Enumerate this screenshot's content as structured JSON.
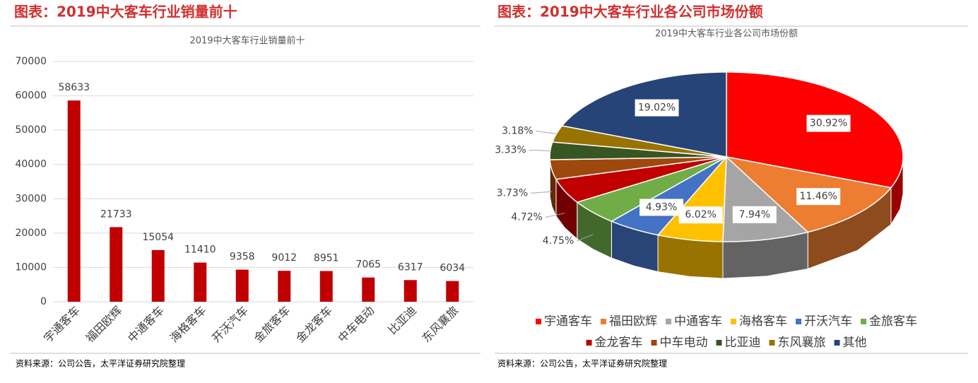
{
  "chart_data": [
    {
      "type": "bar",
      "heading": "图表：2019中大客车行业销量前十",
      "title": "2019中大客车行业销量前十",
      "source": "资料来源：公司公告，太平洋证券研究院整理",
      "categories": [
        "宇通客车",
        "福田欧辉",
        "中通客车",
        "海格客车",
        "开沃汽车",
        "金旅客车",
        "金龙客车",
        "中车电动",
        "比亚迪",
        "东风襄旅"
      ],
      "values": [
        58633,
        21733,
        15054,
        11410,
        9358,
        9012,
        8951,
        7065,
        6317,
        6034
      ],
      "color": "#c00000",
      "ylim": [
        0,
        70000
      ],
      "yticks": [
        0,
        10000,
        20000,
        30000,
        40000,
        50000,
        60000,
        70000
      ],
      "grid": true
    },
    {
      "type": "pie",
      "heading": "图表：2019中大客车行业各公司市场份额",
      "title": "2019中大客车行业各公司市场份额",
      "source": "资料来源：公司公告，太平洋证券研究院整理",
      "categories": [
        "宇通客车",
        "福田欧辉",
        "中通客车",
        "海格客车",
        "开沃汽车",
        "金旅客车",
        "金龙客车",
        "中车电动",
        "比亚迪",
        "东风襄旅",
        "其他"
      ],
      "values": [
        30.92,
        11.46,
        7.94,
        6.02,
        4.93,
        4.75,
        4.72,
        3.73,
        3.33,
        3.18,
        19.02
      ],
      "value_labels": [
        "30.92%",
        "11.46%",
        "7.94%",
        "6.02%",
        "4.93%",
        "4.75%",
        "4.72%",
        "3.73%",
        "3.33%",
        "3.18%",
        "19.02%"
      ],
      "colors": [
        "#ff0000",
        "#ed7d31",
        "#a5a5a5",
        "#ffc000",
        "#4472c4",
        "#70ad47",
        "#c00000",
        "#9e480e",
        "#375623",
        "#997300",
        "#264478"
      ],
      "legend": "bottom"
    }
  ]
}
